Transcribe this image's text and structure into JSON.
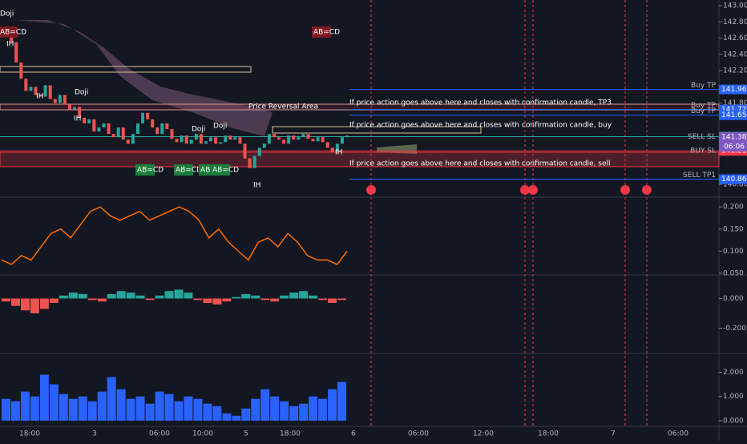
{
  "chart_data": {
    "type": "candlestick",
    "price_axis": {
      "ylim": [
        140.731,
        143.069
      ],
      "yticks": [
        {
          "value": 143,
          "label": "143.000"
        },
        {
          "value": 142.8,
          "label": "142.800"
        },
        {
          "value": 142.6,
          "label": "142.600"
        },
        {
          "value": 142.4,
          "label": "142.400"
        },
        {
          "value": 142.2,
          "label": "142.200"
        },
        {
          "value": 141.8,
          "label": "141.800"
        },
        {
          "value": 140.8,
          "label": "140.800"
        }
      ]
    },
    "closes": [
      142.72,
      142.65,
      142.55,
      142.3,
      142.1,
      141.95,
      142.0,
      141.9,
      141.88,
      142.02,
      141.85,
      141.8,
      141.9,
      141.78,
      141.72,
      141.75,
      141.62,
      141.55,
      141.6,
      141.45,
      141.5,
      141.55,
      141.42,
      141.38,
      141.5,
      141.35,
      141.3,
      141.42,
      141.55,
      141.68,
      141.6,
      141.5,
      141.42,
      141.55,
      141.48,
      141.36,
      141.32,
      141.4,
      141.3,
      141.35,
      141.42,
      141.3,
      141.33,
      141.38,
      141.3,
      141.32,
      141.4,
      141.35,
      141.38,
      141.3,
      141.12,
      141.0,
      141.15,
      141.25,
      141.3,
      141.42,
      141.38,
      141.35,
      141.3,
      141.4,
      141.35,
      141.38,
      141.42,
      141.36,
      141.33,
      141.38,
      141.32,
      141.25,
      141.2,
      141.3,
      141.38,
      141.4
    ],
    "up_color": "#26a69a",
    "down_color": "#ef5350",
    "levels": [
      {
        "name": "Buy TP",
        "value": 141.968,
        "label": "141.968",
        "color": "#2962ff"
      },
      {
        "name": "Buy TP",
        "value": 141.722,
        "label": "141.722",
        "color": "#2962ff"
      },
      {
        "name": "Buy TP",
        "value": 141.651,
        "label": "141.651",
        "color": "#2962ff"
      },
      {
        "name": "SELL SL",
        "value": 141.387,
        "label": "141.387",
        "color": "#26a69a"
      },
      {
        "name": "BUY SL",
        "value": 141.212,
        "label": "141.212",
        "color": "#f23645"
      },
      {
        "name": "SELL TP1",
        "value": 140.863,
        "label": "140.863",
        "color": "#2962ff"
      }
    ],
    "last_price": {
      "value": 141.382,
      "label": "141.382",
      "countdown": "06:06",
      "color": "#7e57c2"
    },
    "zone_label": "Price Reversal Area",
    "notes": [
      "If price action goes above here and closes with confirmation candle, TP3",
      "If price action goes above here and closes with confirmation candle, buy",
      "If price action goes above here and closes with confirmation candle, sell"
    ],
    "patterns": [
      "Doji",
      "AB=CD",
      "Doji",
      "Doji",
      "Doji",
      "AB=CD",
      "AB=CD",
      "AB=CD",
      "AB=CD",
      "AB=CD",
      "IH",
      "IH",
      "IH",
      "IH",
      "IH"
    ],
    "oscillator": {
      "values": [
        0.08,
        0.07,
        0.09,
        0.08,
        0.11,
        0.14,
        0.15,
        0.13,
        0.16,
        0.19,
        0.2,
        0.18,
        0.17,
        0.18,
        0.19,
        0.17,
        0.18,
        0.19,
        0.2,
        0.19,
        0.17,
        0.13,
        0.15,
        0.12,
        0.1,
        0.08,
        0.12,
        0.13,
        0.11,
        0.14,
        0.12,
        0.09,
        0.08,
        0.08,
        0.07,
        0.1
      ],
      "color": "#ff6d00",
      "ylim": [
        0.0463,
        0.2185
      ],
      "yticks": [
        {
          "value": 0.2,
          "label": "0.200"
        },
        {
          "value": 0.15,
          "label": "0.150"
        },
        {
          "value": 0.1,
          "label": "0.100"
        },
        {
          "value": 0.05,
          "label": "0.050"
        }
      ]
    },
    "macd": {
      "values": [
        -0.02,
        -0.05,
        -0.08,
        -0.1,
        -0.07,
        -0.03,
        0.02,
        0.04,
        0.03,
        -0.01,
        -0.02,
        0.03,
        0.05,
        0.04,
        0.02,
        -0.01,
        0.02,
        0.05,
        0.06,
        0.04,
        -0.01,
        -0.03,
        -0.04,
        -0.02,
        0.01,
        0.03,
        0.02,
        -0.01,
        -0.02,
        0.02,
        0.04,
        0.05,
        0.02,
        -0.01,
        -0.03,
        -0.01
      ],
      "up_color": "#26a69a",
      "down_color": "#ef5350",
      "ylim": [
        -0.371,
        0.1486
      ],
      "yticks": [
        {
          "value": 0,
          "label": "0.000"
        },
        {
          "value": -0.2,
          "label": "-0.200"
        }
      ]
    },
    "volume": {
      "values": [
        0.9,
        0.8,
        1.2,
        1.0,
        1.9,
        1.5,
        1.1,
        0.9,
        1.0,
        0.8,
        1.2,
        1.8,
        1.3,
        0.9,
        1.0,
        0.7,
        1.2,
        1.1,
        0.8,
        1.0,
        0.9,
        0.7,
        0.6,
        0.3,
        0.2,
        0.5,
        0.9,
        1.3,
        1.0,
        0.8,
        0.6,
        0.7,
        1.0,
        0.9,
        1.3,
        1.6
      ],
      "color": "#2962ff",
      "ylim": [
        -0.237,
        2.712
      ],
      "yticks": [
        {
          "value": 2,
          "label": "2.000"
        },
        {
          "value": 1,
          "label": "1.000"
        },
        {
          "value": 0,
          "label": "0.000"
        }
      ]
    },
    "time_labels": [
      "18:00",
      "3",
      "06:00",
      "10:00",
      "5",
      "18:00",
      "6",
      "06:00",
      "12:00",
      "18:00",
      "7",
      "06:00"
    ]
  }
}
